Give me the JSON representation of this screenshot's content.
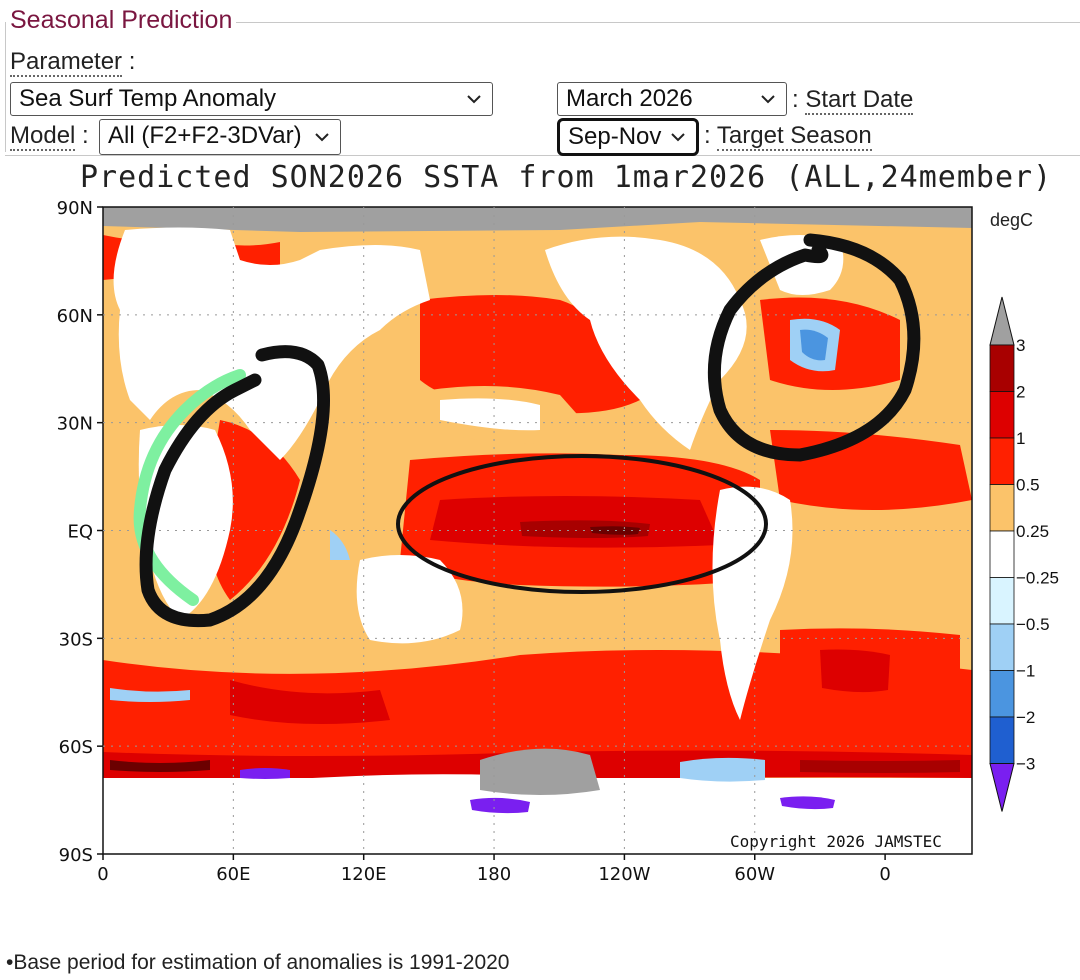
{
  "legend": "Seasonal Prediction",
  "parameter": {
    "label": "Parameter",
    "sep": ":",
    "value": "Sea Surf Temp Anomaly"
  },
  "start_date": {
    "value": "March 2026",
    "label": "Start Date",
    "sep": ":"
  },
  "model": {
    "label": "Model",
    "sep": ":",
    "value": "All (F2+F2-3DVar)"
  },
  "target_season": {
    "value": "Sep-Nov",
    "label": "Target Season",
    "sep": ":"
  },
  "chart_data": {
    "type": "heatmap",
    "title": "Predicted SON2026 SSTA from 1mar2026 (ALL,24member)",
    "units": "degC",
    "x_ticks": [
      "0",
      "60E",
      "120E",
      "180",
      "120W",
      "60W",
      "0"
    ],
    "y_ticks": [
      "90N",
      "60N",
      "30N",
      "EQ",
      "30S",
      "60S",
      "90S"
    ],
    "colorbar": [
      "3",
      "2",
      "1",
      "0.5",
      "0.25",
      "−0.25",
      "−0.5",
      "−1",
      "−2",
      "−3"
    ],
    "colors": {
      "c_gt3": "#6b0000",
      "c_2_3": "#a80000",
      "c_1_2": "#dd0000",
      "c_05_1": "#ff2000",
      "c_025_05": "#fbc36a",
      "c_neutral": "#ffffff",
      "c_n025": "#d9f4ff",
      "c_n05": "#9fd0f5",
      "c_n1": "#4b95e0",
      "c_n2": "#1f5fd0",
      "c_lt3": "#7a1ff0",
      "land": "#ffffff",
      "ice": "#a0a0a0"
    },
    "copyright": "Copyright 2026 JAMSTEC"
  },
  "footnote": "•Base period for estimation of anomalies is 1991-2020"
}
